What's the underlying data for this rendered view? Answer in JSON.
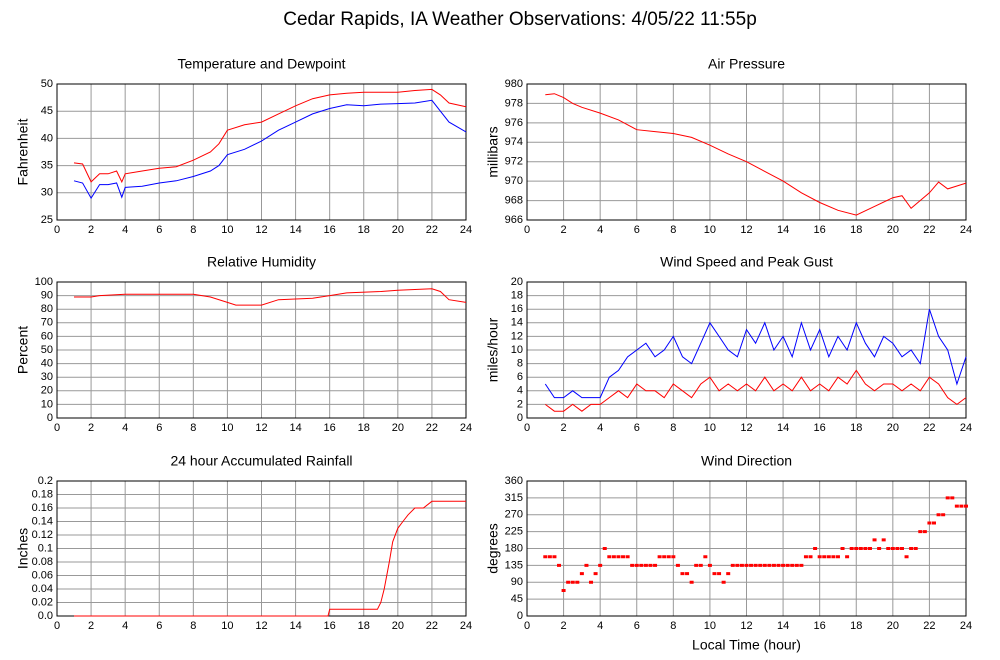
{
  "title": "Cedar Rapids, IA Weather Observations: 4/05/22 11:55p",
  "chart_data": [
    {
      "type": "line",
      "title": "Temperature and Dewpoint",
      "ylabel": "Fahrenheit",
      "x": [
        1,
        1.5,
        2,
        2.5,
        3,
        3.5,
        3.8,
        4,
        5,
        6,
        7,
        8,
        9,
        9.5,
        10,
        11,
        12,
        13,
        14,
        15,
        16,
        17,
        18,
        19,
        20,
        21,
        22,
        22.5,
        23,
        24
      ],
      "series": [
        {
          "color": "#ff0000",
          "values": [
            35.5,
            35.3,
            32,
            33.5,
            33.5,
            34,
            32,
            33.5,
            34,
            34.5,
            34.8,
            36,
            37.5,
            39,
            41.5,
            42.5,
            43,
            44.5,
            46,
            47.3,
            48,
            48.3,
            48.5,
            48.5,
            48.5,
            48.8,
            49,
            48,
            46.5,
            45.8
          ]
        },
        {
          "color": "#0000ff",
          "values": [
            32.2,
            31.8,
            29,
            31.5,
            31.5,
            31.8,
            29.2,
            31,
            31.2,
            31.8,
            32.2,
            33,
            34,
            35,
            37,
            38,
            39.5,
            41.5,
            43,
            44.5,
            45.5,
            46.2,
            46,
            46.3,
            46.4,
            46.5,
            47,
            45,
            43,
            41.2
          ]
        }
      ],
      "xlim": [
        0,
        24
      ],
      "xticks": [
        0,
        2,
        4,
        6,
        8,
        10,
        12,
        14,
        16,
        18,
        20,
        22,
        24
      ],
      "ylim": [
        25,
        50
      ],
      "yticks": [
        25,
        30,
        35,
        40,
        45,
        50
      ],
      "grid": true
    },
    {
      "type": "line",
      "title": "Air Pressure",
      "ylabel": "millibars",
      "x": [
        1,
        1.5,
        2,
        2.5,
        3,
        4,
        5,
        6,
        7,
        8,
        9,
        10,
        11,
        12,
        13,
        14,
        15,
        16,
        17,
        18,
        19,
        20,
        20.5,
        21,
        22,
        22.5,
        23,
        23.5,
        24
      ],
      "series": [
        {
          "color": "#ff0000",
          "values": [
            978.9,
            979,
            978.6,
            978,
            977.6,
            977,
            976.3,
            975.3,
            975.1,
            974.9,
            974.5,
            973.7,
            972.8,
            972,
            971,
            970,
            968.8,
            967.8,
            967,
            966.5,
            967.4,
            968.3,
            968.5,
            967.2,
            968.8,
            969.9,
            969.2,
            969.5,
            969.8
          ]
        }
      ],
      "xlim": [
        0,
        24
      ],
      "xticks": [
        0,
        2,
        4,
        6,
        8,
        10,
        12,
        14,
        16,
        18,
        20,
        22,
        24
      ],
      "ylim": [
        966,
        980
      ],
      "yticks": [
        966,
        968,
        970,
        972,
        974,
        976,
        978,
        980
      ],
      "grid": true
    },
    {
      "type": "line",
      "title": "Relative Humidity",
      "ylabel": "Percent",
      "x": [
        1,
        2,
        2.5,
        4,
        8,
        9,
        10,
        10.5,
        12,
        13,
        15,
        16,
        17,
        19,
        20,
        22,
        22.5,
        23,
        24
      ],
      "series": [
        {
          "color": "#ff0000",
          "values": [
            89,
            89,
            90,
            91,
            91,
            89,
            85,
            83,
            83,
            87,
            88,
            90,
            92,
            93,
            94,
            95,
            93,
            87,
            85
          ]
        }
      ],
      "xlim": [
        0,
        24
      ],
      "xticks": [
        0,
        2,
        4,
        6,
        8,
        10,
        12,
        14,
        16,
        18,
        20,
        22,
        24
      ],
      "ylim": [
        0,
        100
      ],
      "yticks": [
        0,
        10,
        20,
        30,
        40,
        50,
        60,
        70,
        80,
        90,
        100
      ],
      "grid": true
    },
    {
      "type": "line",
      "title": "Wind Speed and Peak Gust",
      "ylabel": "miles/hour",
      "x": [
        1,
        1.5,
        2,
        2.5,
        3,
        3.5,
        4,
        4.5,
        5,
        5.5,
        6,
        6.5,
        7,
        7.5,
        8,
        8.5,
        9,
        9.5,
        10,
        10.5,
        11,
        11.5,
        12,
        12.5,
        13,
        13.5,
        14,
        14.5,
        15,
        15.5,
        16,
        16.5,
        17,
        17.5,
        18,
        18.5,
        19,
        19.5,
        20,
        20.5,
        21,
        21.5,
        22,
        22.5,
        23,
        23.5,
        24
      ],
      "series": [
        {
          "color": "#0000ff",
          "values": [
            5,
            3,
            3,
            4,
            3,
            3,
            3,
            6,
            7,
            9,
            10,
            11,
            9,
            10,
            12,
            9,
            8,
            11,
            14,
            12,
            10,
            9,
            13,
            11,
            14,
            10,
            12,
            9,
            14,
            10,
            13,
            9,
            12,
            10,
            14,
            11,
            9,
            12,
            11,
            9,
            10,
            8,
            16,
            12,
            10,
            5,
            9
          ]
        },
        {
          "color": "#ff0000",
          "values": [
            2,
            1,
            1,
            2,
            1,
            2,
            2,
            3,
            4,
            3,
            5,
            4,
            4,
            3,
            5,
            4,
            3,
            5,
            6,
            4,
            5,
            4,
            5,
            4,
            6,
            4,
            5,
            4,
            6,
            4,
            5,
            4,
            6,
            5,
            7,
            5,
            4,
            5,
            5,
            4,
            5,
            4,
            6,
            5,
            3,
            2,
            3
          ]
        }
      ],
      "xlim": [
        0,
        24
      ],
      "xticks": [
        0,
        2,
        4,
        6,
        8,
        10,
        12,
        14,
        16,
        18,
        20,
        22,
        24
      ],
      "ylim": [
        0,
        20
      ],
      "yticks": [
        0,
        2,
        4,
        6,
        8,
        10,
        12,
        14,
        16,
        18,
        20
      ],
      "grid": true
    },
    {
      "type": "line",
      "title": "24 hour Accumulated Rainfall",
      "ylabel": "Inches",
      "x": [
        1,
        15.9,
        16,
        18.8,
        19,
        19.2,
        19.5,
        19.7,
        20,
        20.3,
        20.6,
        21,
        21.5,
        22,
        24
      ],
      "series": [
        {
          "color": "#ff0000",
          "values": [
            0,
            0,
            0.01,
            0.01,
            0.02,
            0.04,
            0.08,
            0.11,
            0.13,
            0.14,
            0.15,
            0.16,
            0.16,
            0.17,
            0.17
          ]
        }
      ],
      "xlim": [
        0,
        24
      ],
      "xticks": [
        0,
        2,
        4,
        6,
        8,
        10,
        12,
        14,
        16,
        18,
        20,
        22,
        24
      ],
      "ylim": [
        0,
        0.2
      ],
      "yticks": [
        {
          "value": 0,
          "label": "0.0"
        },
        0.02,
        0.04,
        0.06,
        0.08,
        0.1,
        0.12,
        0.14,
        0.16,
        0.18,
        0.2
      ],
      "grid": true
    },
    {
      "type": "scatter",
      "title": "Wind Direction",
      "ylabel": "degrees",
      "xlabel": "Local Time (hour)",
      "x": [
        1,
        1.25,
        1.5,
        1.75,
        2,
        2.25,
        2.5,
        2.75,
        3,
        3.25,
        3.5,
        3.75,
        4,
        4.25,
        4.5,
        4.75,
        5,
        5.25,
        5.5,
        5.75,
        6,
        6.25,
        6.5,
        6.75,
        7,
        7.25,
        7.5,
        7.75,
        8,
        8.25,
        8.5,
        8.75,
        9,
        9.25,
        9.5,
        9.75,
        10,
        10.25,
        10.5,
        10.75,
        11,
        11.25,
        11.5,
        11.75,
        12,
        12.25,
        12.5,
        12.75,
        13,
        13.25,
        13.5,
        13.75,
        14,
        14.25,
        14.5,
        14.75,
        15,
        15.25,
        15.5,
        15.75,
        16,
        16.25,
        16.5,
        16.75,
        17,
        17.25,
        17.5,
        17.75,
        18,
        18.25,
        18.5,
        18.75,
        19,
        19.25,
        19.5,
        19.75,
        20,
        20.25,
        20.5,
        20.75,
        21,
        21.25,
        21.5,
        21.75,
        22,
        22.25,
        22.5,
        22.75,
        23,
        23.25,
        23.5,
        23.75,
        24
      ],
      "series": [
        {
          "color": "#ff0000",
          "values": [
            158,
            158,
            158,
            135,
            68,
            90,
            90,
            90,
            113,
            135,
            90,
            113,
            135,
            180,
            158,
            158,
            158,
            158,
            158,
            135,
            135,
            135,
            135,
            135,
            135,
            158,
            158,
            158,
            158,
            135,
            113,
            113,
            90,
            135,
            135,
            158,
            135,
            113,
            113,
            90,
            113,
            135,
            135,
            135,
            135,
            135,
            135,
            135,
            135,
            135,
            135,
            135,
            135,
            135,
            135,
            135,
            135,
            158,
            158,
            180,
            158,
            158,
            158,
            158,
            158,
            180,
            158,
            180,
            180,
            180,
            180,
            180,
            203,
            180,
            203,
            180,
            180,
            180,
            180,
            158,
            180,
            180,
            225,
            225,
            248,
            248,
            270,
            270,
            315,
            315,
            293,
            293,
            293
          ]
        }
      ],
      "xlim": [
        0,
        24
      ],
      "xticks": [
        0,
        2,
        4,
        6,
        8,
        10,
        12,
        14,
        16,
        18,
        20,
        22,
        24
      ],
      "ylim": [
        0,
        360
      ],
      "yticks": [
        0,
        45,
        90,
        135,
        180,
        225,
        270,
        315,
        360
      ],
      "grid": true
    }
  ]
}
